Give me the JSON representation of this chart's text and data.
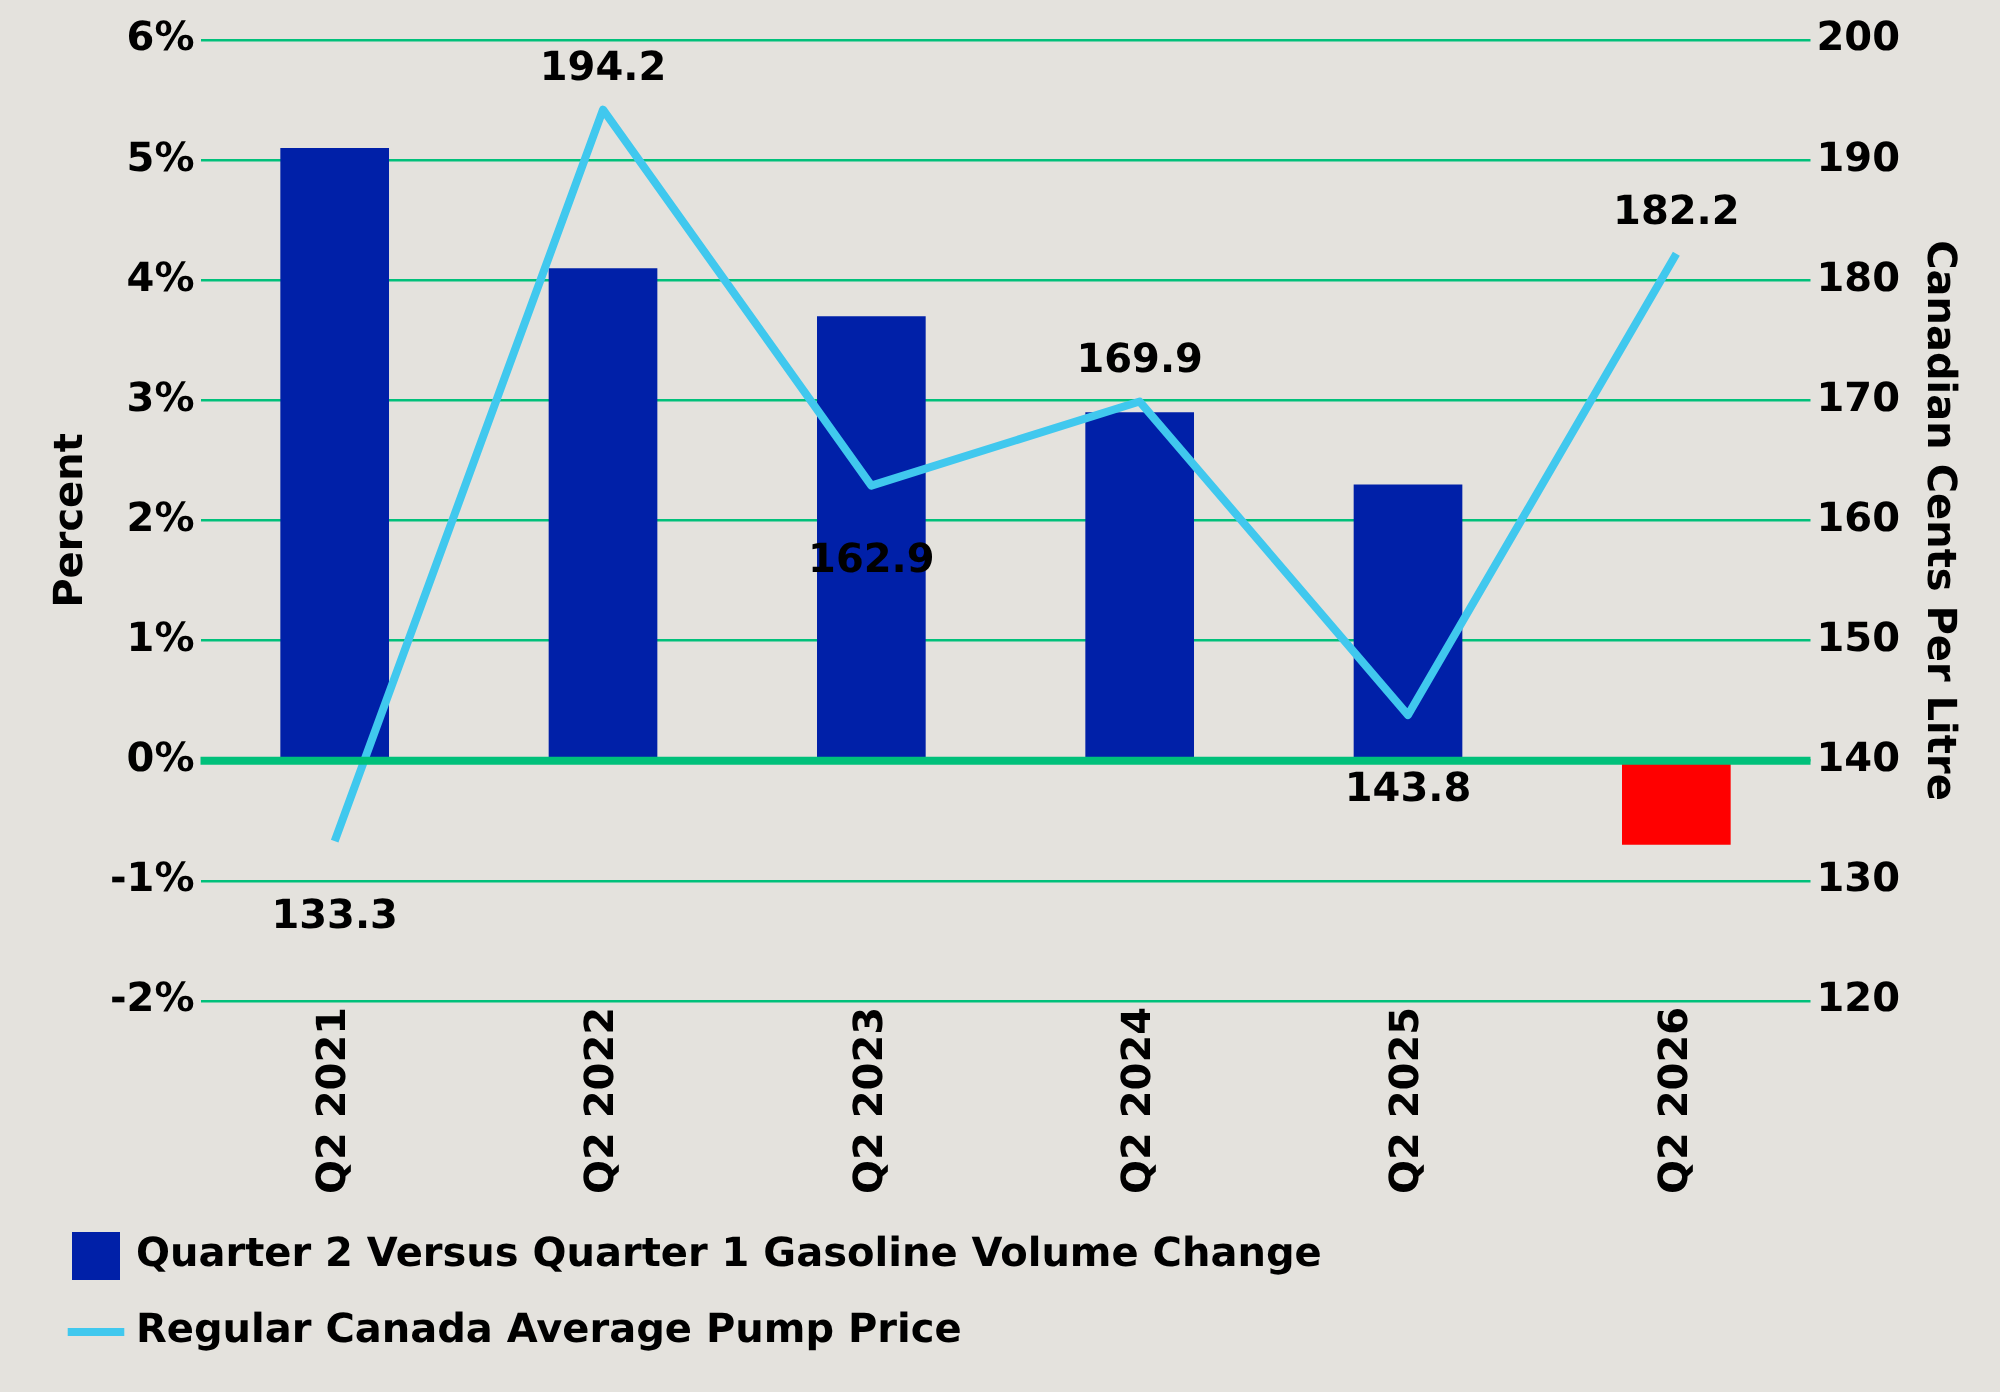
{
  "chart_data": {
    "type": "bar",
    "categories": [
      "Q2 2021",
      "Q2 2022",
      "Q2 2023",
      "Q2 2024",
      "Q2 2025",
      "Q2 2026"
    ],
    "ylabel": "Percent",
    "y2label": "Canadian Cents Per Litre",
    "series": [
      {
        "name": "Quarter 2 Versus Quarter 1 Gasoline Volume Change",
        "color": "#0020a8",
        "colors": [
          "#0020a8",
          "#0020a8",
          "#0020a8",
          "#0020a8",
          "#0020a8",
          "#ff0000"
        ],
        "values": [
          5.1,
          4.1,
          3.7,
          2.9,
          2.3,
          -0.7
        ]
      },
      {
        "name": "Regular Canada Average Pump Price",
        "type": "line",
        "axis": "y2",
        "color": "#40c8ee",
        "values": [
          133.3,
          194.2,
          162.9,
          169.9,
          143.8,
          182.2
        ],
        "data_labels": true
      }
    ],
    "ylim": [
      -2,
      6
    ],
    "yticks": [
      {
        "value": -2,
        "label": "-2%"
      },
      {
        "value": -1,
        "label": "-1%"
      },
      {
        "value": 0,
        "label": "0%"
      },
      {
        "value": 1,
        "label": "1%"
      },
      {
        "value": 2,
        "label": "2%"
      },
      {
        "value": 3,
        "label": "3%"
      },
      {
        "value": 4,
        "label": "4%"
      },
      {
        "value": 5,
        "label": "5%"
      },
      {
        "value": 6,
        "label": "6%"
      }
    ],
    "y2lim": [
      120,
      200
    ],
    "y2ticks": [
      120,
      130,
      140,
      150,
      160,
      170,
      180,
      190,
      200
    ],
    "ref_lines": [
      {
        "axis": "y",
        "value": 0,
        "color": "#00c07a"
      }
    ],
    "grid": "y",
    "legend": "bottom left",
    "marker": "none",
    "line_style": "solid"
  }
}
